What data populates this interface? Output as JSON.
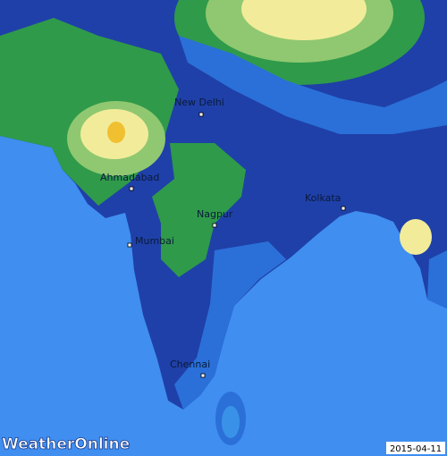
{
  "cities": [
    {
      "name": "New Delhi"
    },
    {
      "name": "Ahmadabad"
    },
    {
      "name": "Nagpur"
    },
    {
      "name": "Kolkata"
    },
    {
      "name": "Mumbai"
    },
    {
      "name": "Chennai"
    }
  ],
  "logo": "WeatherOnline",
  "date": "2015-04-11"
}
